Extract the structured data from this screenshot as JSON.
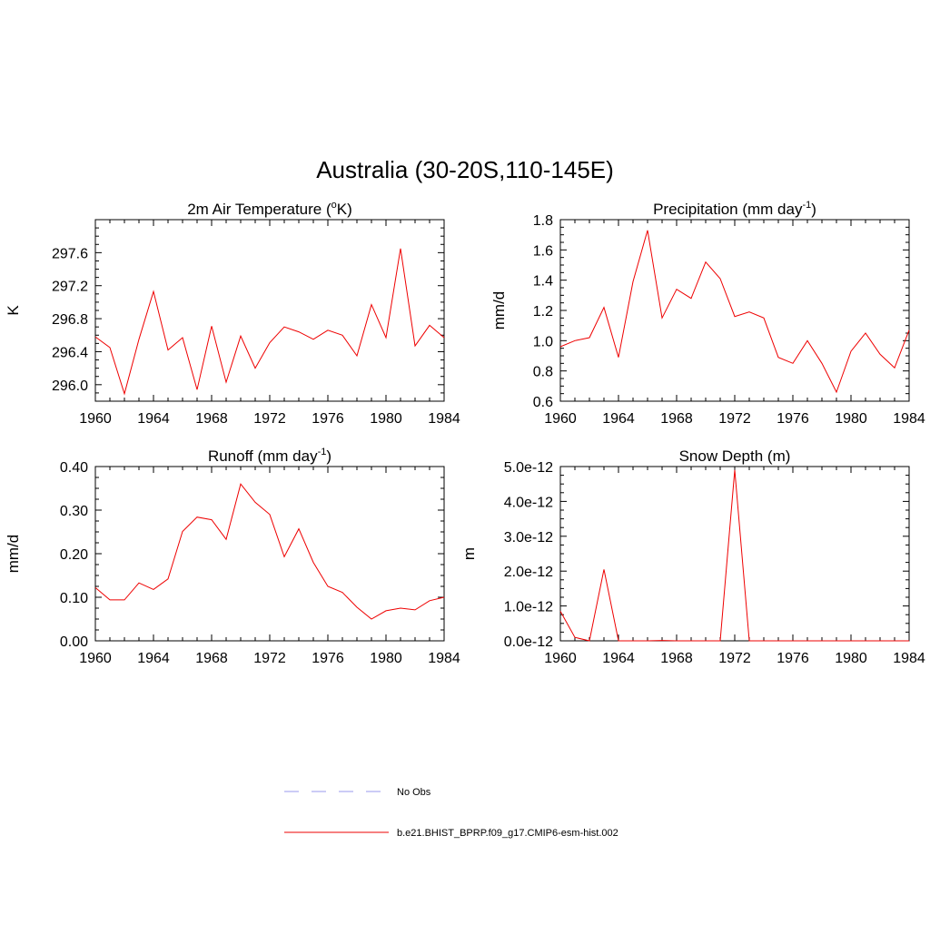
{
  "figure": {
    "title": "Australia (30-20S,110-145E)"
  },
  "legend": {
    "entries": [
      {
        "label": "No Obs",
        "color": "#9999ee",
        "dash": "dashed"
      },
      {
        "label": "b.e21.BHIST_BPRP.f09_g17.CMIP6-esm-hist.002",
        "color": "#ee0000",
        "dash": "solid"
      }
    ]
  },
  "chart_data": [
    {
      "type": "line",
      "title_main": "2m Air Temperature (",
      "title_sup": "o",
      "title_end": "K)",
      "ylabel": "K",
      "xlim": [
        1960,
        1984
      ],
      "ylim": [
        295.8,
        298.0
      ],
      "xticks": [
        1960,
        1964,
        1968,
        1972,
        1976,
        1980,
        1984
      ],
      "yticks": [
        296.0,
        296.4,
        296.8,
        297.2,
        297.6
      ],
      "ytick_labels": [
        "296.0",
        "296.4",
        "296.8",
        "297.2",
        "297.6"
      ],
      "x": [
        1960,
        1961,
        1962,
        1963,
        1964,
        1965,
        1966,
        1967,
        1968,
        1969,
        1970,
        1971,
        1972,
        1973,
        1974,
        1975,
        1976,
        1977,
        1978,
        1979,
        1980,
        1981,
        1982,
        1983,
        1984
      ],
      "series": [
        {
          "name": "b.e21.BHIST_BPRP.f09_g17.CMIP6-esm-hist.002",
          "color": "#ee0000",
          "values": [
            296.58,
            296.45,
            295.89,
            296.55,
            297.13,
            296.42,
            296.57,
            295.94,
            296.71,
            296.03,
            296.59,
            296.2,
            296.51,
            296.7,
            296.64,
            296.55,
            296.66,
            296.6,
            296.35,
            296.97,
            296.57,
            297.65,
            296.47,
            296.72,
            296.57
          ]
        }
      ]
    },
    {
      "type": "line",
      "title_main": "Precipitation (mm day",
      "title_sup": "-1",
      "title_end": ")",
      "ylabel": "mm/d",
      "xlim": [
        1960,
        1984
      ],
      "ylim": [
        0.6,
        1.8
      ],
      "xticks": [
        1960,
        1964,
        1968,
        1972,
        1976,
        1980,
        1984
      ],
      "yticks": [
        0.6,
        0.8,
        1.0,
        1.2,
        1.4,
        1.6,
        1.8
      ],
      "ytick_labels": [
        "0.6",
        "0.8",
        "1.0",
        "1.2",
        "1.4",
        "1.6",
        "1.8"
      ],
      "x": [
        1960,
        1961,
        1962,
        1963,
        1964,
        1965,
        1966,
        1967,
        1968,
        1969,
        1970,
        1971,
        1972,
        1973,
        1974,
        1975,
        1976,
        1977,
        1978,
        1979,
        1980,
        1981,
        1982,
        1983,
        1984
      ],
      "series": [
        {
          "name": "b.e21.BHIST_BPRP.f09_g17.CMIP6-esm-hist.002",
          "color": "#ee0000",
          "values": [
            0.96,
            1.0,
            1.02,
            1.22,
            0.89,
            1.39,
            1.73,
            1.15,
            1.34,
            1.28,
            1.52,
            1.41,
            1.16,
            1.19,
            1.15,
            0.89,
            0.85,
            1.0,
            0.85,
            0.66,
            0.93,
            1.05,
            0.91,
            0.82,
            1.07
          ]
        }
      ]
    },
    {
      "type": "line",
      "title_main": "Runoff (mm day",
      "title_sup": "-1",
      "title_end": ")",
      "ylabel": "mm/d",
      "xlim": [
        1960,
        1984
      ],
      "ylim": [
        0.0,
        0.4
      ],
      "xticks": [
        1960,
        1964,
        1968,
        1972,
        1976,
        1980,
        1984
      ],
      "yticks": [
        0.0,
        0.1,
        0.2,
        0.3,
        0.4
      ],
      "ytick_labels": [
        "0.00",
        "0.10",
        "0.20",
        "0.30",
        "0.40"
      ],
      "x": [
        1960,
        1961,
        1962,
        1963,
        1964,
        1965,
        1966,
        1967,
        1968,
        1969,
        1970,
        1971,
        1972,
        1973,
        1974,
        1975,
        1976,
        1977,
        1978,
        1979,
        1980,
        1981,
        1982,
        1983,
        1984
      ],
      "series": [
        {
          "name": "b.e21.BHIST_BPRP.f09_g17.CMIP6-esm-hist.002",
          "color": "#ee0000",
          "values": [
            0.122,
            0.094,
            0.094,
            0.133,
            0.118,
            0.142,
            0.251,
            0.284,
            0.278,
            0.233,
            0.36,
            0.318,
            0.29,
            0.193,
            0.257,
            0.18,
            0.125,
            0.111,
            0.077,
            0.05,
            0.069,
            0.075,
            0.071,
            0.092,
            0.1
          ]
        }
      ]
    },
    {
      "type": "line",
      "title_main": "Snow Depth (m)",
      "title_sup": "",
      "title_end": "",
      "ylabel": "m",
      "xlim": [
        1960,
        1984
      ],
      "ylim": [
        0.0,
        5e-12
      ],
      "xticks": [
        1960,
        1964,
        1968,
        1972,
        1976,
        1980,
        1984
      ],
      "yticks": [
        0.0,
        1e-12,
        2e-12,
        3e-12,
        4e-12,
        5e-12
      ],
      "ytick_labels": [
        "0.0e-12",
        "1.0e-12",
        "2.0e-12",
        "3.0e-12",
        "4.0e-12",
        "5.0e-12"
      ],
      "x": [
        1960,
        1961,
        1962,
        1963,
        1964,
        1965,
        1966,
        1967,
        1968,
        1969,
        1970,
        1971,
        1972,
        1973,
        1974,
        1975,
        1976,
        1977,
        1978,
        1979,
        1980,
        1981,
        1982,
        1983,
        1984
      ],
      "series": [
        {
          "name": "b.e21.BHIST_BPRP.f09_g17.CMIP6-esm-hist.002",
          "color": "#ee0000",
          "values": [
            8.5e-13,
            1e-13,
            0.0,
            2.05e-12,
            0.0,
            0.0,
            0.0,
            1e-14,
            0.0,
            0.0,
            0.0,
            0.0,
            4.9e-12,
            0.0,
            0.0,
            0.0,
            0.0,
            0.0,
            0.0,
            0.0,
            0.0,
            0.0,
            0.0,
            0.0,
            0.0
          ]
        }
      ]
    }
  ]
}
